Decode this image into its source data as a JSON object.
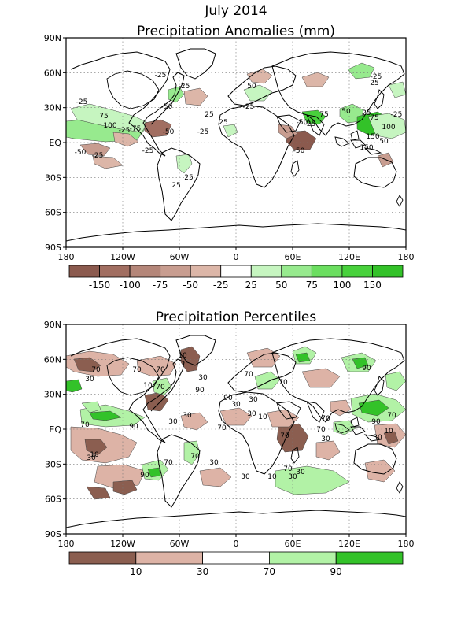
{
  "title": "July 2014",
  "panels": [
    {
      "id": "anomalies",
      "title": "Precipitation Anomalies (mm)",
      "lat_labels": [
        "90N",
        "60N",
        "30N",
        "EQ",
        "30S",
        "60S",
        "90S"
      ],
      "lon_labels": [
        "180",
        "120W",
        "60W",
        "0",
        "60E",
        "120E",
        "180"
      ],
      "legend_colors": [
        "#8b5a4e",
        "#a16e61",
        "#b48679",
        "#c89d90",
        "#dcb6a8",
        "#ffffff",
        "#c6f5c0",
        "#97ea8e",
        "#6bde60",
        "#48d13c",
        "#33c229"
      ],
      "legend_labels": [
        "-150",
        "-100",
        "-75",
        "-50",
        "-25",
        "25",
        "50",
        "75",
        "100",
        "150"
      ],
      "contour_labels": [
        "-25",
        "-25",
        "-25",
        "-50",
        "75",
        "100",
        "-75",
        "-25",
        "-50",
        "-50",
        "-25",
        "25",
        "25",
        "-25",
        "-25",
        "50",
        "-25",
        "25",
        "25",
        "-25",
        "75",
        "50",
        "25",
        "75",
        "150",
        "50",
        "100",
        "-50",
        "25",
        "-25",
        "150",
        "-25",
        "-50"
      ]
    },
    {
      "id": "percentiles",
      "title": "Precipitation Percentiles",
      "lat_labels": [
        "90N",
        "60N",
        "30N",
        "EQ",
        "30S",
        "60S",
        "90S"
      ],
      "lon_labels": [
        "180",
        "120W",
        "60W",
        "0",
        "60E",
        "120E",
        "180"
      ],
      "legend_colors": [
        "#8b5e50",
        "#ddb3a6",
        "#ffffff",
        "#b2f2a6",
        "#33c229"
      ],
      "legend_labels": [
        "10",
        "30",
        "70",
        "90"
      ],
      "contour_labels": [
        "70",
        "30",
        "10",
        "70",
        "70",
        "90",
        "10",
        "30",
        "70",
        "90",
        "90",
        "70",
        "30",
        "30",
        "70",
        "10",
        "30",
        "30",
        "70",
        "90",
        "30",
        "70",
        "10",
        "30",
        "70",
        "90",
        "70",
        "30",
        "70",
        "10",
        "30",
        "30",
        "70",
        "30",
        "70",
        "10",
        "30",
        "70",
        "90",
        "30",
        "70"
      ]
    }
  ]
}
